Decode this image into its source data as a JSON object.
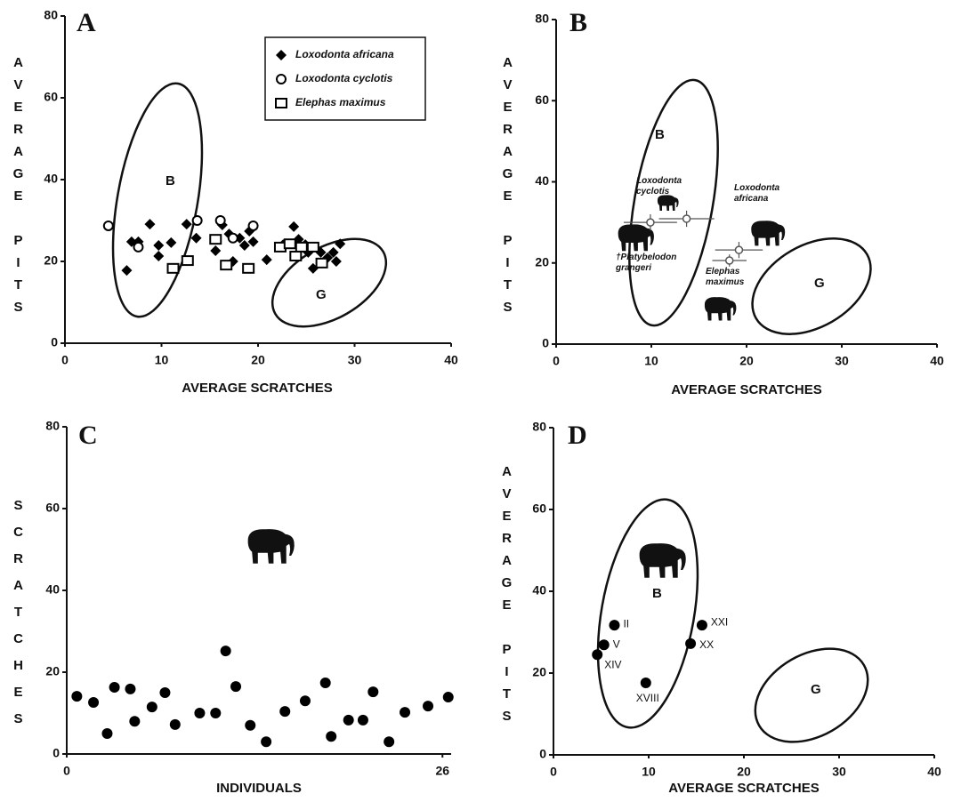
{
  "chart_data": [
    {
      "type": "scatter",
      "panel": "A",
      "xlabel": "AVERAGE SCRATCHES",
      "ylabel": "AVERAGE PITS",
      "xlim": [
        0,
        40
      ],
      "ylim": [
        0,
        80
      ],
      "xticks": [
        0,
        10,
        20,
        30,
        40
      ],
      "yticks": [
        0,
        20,
        40,
        60,
        80
      ],
      "legend": "top-right",
      "annotations": [
        "B",
        "G"
      ],
      "series": [
        {
          "name": "Loxodonta africana",
          "marker": "diamond",
          "color": "#000000",
          "x": [
            6.4,
            6.9,
            7.6,
            8.8,
            9.7,
            9.7,
            11.0,
            12.6,
            13.6,
            15.6,
            16.3,
            17.0,
            17.4,
            18.1,
            18.6,
            19.1,
            19.5,
            20.9,
            22.6,
            23.7,
            24.2,
            24.9,
            25.2,
            25.7,
            26.5,
            27.2,
            27.8,
            28.1,
            28.5
          ],
          "y": [
            17.8,
            24.8,
            24.8,
            29.1,
            23.9,
            21.3,
            24.6,
            29.1,
            25.7,
            22.6,
            28.9,
            26.7,
            20.0,
            25.7,
            23.9,
            27.4,
            24.8,
            20.4,
            24.1,
            28.5,
            25.4,
            24.1,
            22.2,
            18.3,
            22.2,
            20.9,
            22.2,
            20.0,
            24.3
          ]
        },
        {
          "name": "Loxodonta cyclotis",
          "marker": "circle",
          "color": "#000000",
          "x": [
            4.5,
            7.6,
            13.7,
            16.1,
            17.4,
            19.5
          ],
          "y": [
            28.7,
            23.5,
            30.0,
            30.0,
            25.7,
            28.7
          ]
        },
        {
          "name": "Elephas maximus",
          "marker": "square",
          "color": "#000000",
          "x": [
            11.2,
            12.7,
            15.6,
            16.7,
            19.0,
            22.3,
            23.3,
            23.9,
            24.5,
            25.7,
            26.6
          ],
          "y": [
            18.3,
            20.2,
            25.4,
            19.1,
            18.3,
            23.5,
            24.3,
            21.3,
            23.5,
            23.5,
            19.6
          ]
        }
      ]
    },
    {
      "type": "errorbar",
      "panel": "B",
      "xlabel": "AVERAGE SCRATCHES",
      "ylabel": "AVERAGE PITS",
      "xlim": [
        0,
        40
      ],
      "ylim": [
        0,
        80
      ],
      "xticks": [
        0,
        10,
        20,
        30,
        40
      ],
      "yticks": [
        0,
        20,
        40,
        60,
        80
      ],
      "annotations": [
        "B",
        "G",
        "Loxodonta africana",
        "†Platybelodon grangeri"
      ],
      "series": [
        {
          "name": "Loxodonta cyclotis",
          "color": "#555555",
          "x": [
            9.9,
            13.7
          ],
          "y": [
            30.0,
            30.9
          ],
          "xerr": [
            2.8,
            2.9
          ],
          "yerr": [
            2,
            2
          ]
        },
        {
          "name": "Elephas maximus",
          "color": "#555555",
          "x": [
            18.2,
            19.2
          ],
          "y": [
            20.6,
            23.2
          ],
          "xerr": [
            1.8,
            2.5
          ],
          "yerr": [
            1.5,
            2
          ]
        }
      ]
    },
    {
      "type": "scatter",
      "panel": "C",
      "xlabel": "INDIVIDUALS",
      "ylabel": "SCRATCHES",
      "xlim": [
        0,
        26.6
      ],
      "ylim": [
        0,
        80
      ],
      "xticks": [
        0,
        26
      ],
      "yticks": [
        0,
        20,
        40,
        60,
        80
      ],
      "series": [
        {
          "marker": "dot",
          "color": "#000000",
          "x": [
            0.7,
            1.85,
            2.8,
            3.3,
            4.4,
            4.7,
            5.9,
            6.8,
            7.5,
            9.2,
            10.3,
            11.0,
            11.7,
            12.7,
            13.8,
            15.1,
            16.5,
            17.9,
            18.3,
            19.5,
            20.5,
            21.2,
            22.3,
            23.4,
            25.0,
            26.4
          ],
          "y": [
            14.1,
            12.6,
            5.0,
            16.3,
            15.9,
            8.0,
            11.5,
            15.0,
            7.2,
            10.0,
            10.0,
            25.2,
            16.5,
            7.0,
            3.0,
            10.4,
            13.0,
            17.4,
            4.3,
            8.3,
            8.3,
            15.2,
            3.0,
            10.2,
            11.7,
            13.9
          ]
        }
      ]
    },
    {
      "type": "scatter",
      "panel": "D",
      "xlabel": "AVERAGE SCRATCHES",
      "ylabel": "AVERAGE PITS",
      "xlim": [
        0,
        40
      ],
      "ylim": [
        0,
        80
      ],
      "xticks": [
        0,
        10,
        20,
        30,
        40
      ],
      "yticks": [
        0,
        20,
        40,
        60,
        80
      ],
      "annotations": [
        "B",
        "G"
      ],
      "series": [
        {
          "marker": "dot",
          "color": "#000000",
          "x": [
            6.4,
            5.3,
            4.6,
            9.7,
            15.6,
            14.4
          ],
          "y": [
            31.7,
            26.9,
            24.5,
            17.6,
            31.7,
            27.2
          ],
          "labels": [
            "II",
            "V",
            "XIV",
            "XVIII",
            "XXI",
            "XX"
          ]
        }
      ]
    }
  ]
}
